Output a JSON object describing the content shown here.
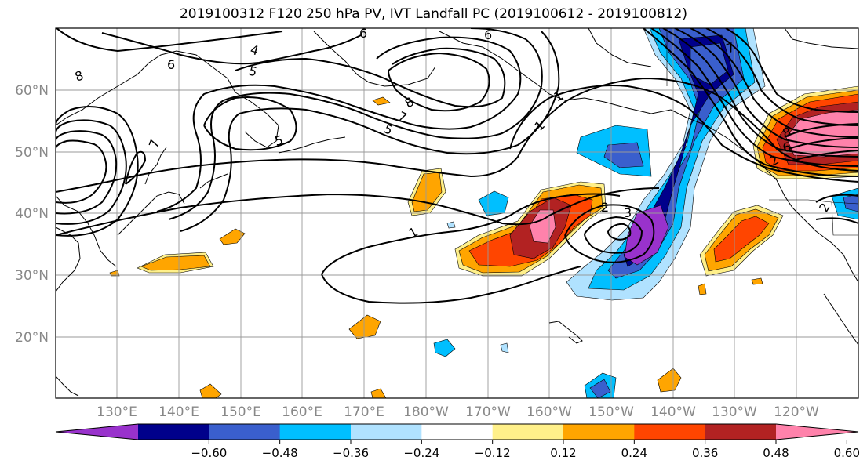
{
  "title": "2019100312 F120 250 hPa PV, IVT Landfall PC (2019100612 - 2019100812)",
  "lat_labels": [
    "60°N",
    "50°N",
    "40°N",
    "30°N",
    "20°N"
  ],
  "lon_labels": [
    "130°E",
    "140°E",
    "150°E",
    "160°E",
    "170°E",
    "180°W",
    "170°W",
    "160°W",
    "150°W",
    "140°W",
    "130°W",
    "120°W"
  ],
  "colorbar": {
    "colors": [
      "#9932cc",
      "#00008b",
      "#3a5fcd",
      "#00bfff",
      "#b0e2ff",
      "#ffffff",
      "#fff08a",
      "#ffa500",
      "#ff4500",
      "#b22222",
      "#ff82ab"
    ],
    "tick_labels": [
      "−0.60",
      "−0.48",
      "−0.36",
      "−0.24",
      "−0.12",
      "0.12",
      "0.24",
      "0.36",
      "0.48",
      "0.60"
    ]
  },
  "contour_labels": [
    "8",
    "6",
    "4",
    "5",
    "6",
    "6",
    "7",
    "8",
    "7",
    "5",
    "5",
    "1",
    "1",
    "1",
    "2",
    "3",
    "7",
    "8",
    "6",
    "2",
    "2"
  ]
}
